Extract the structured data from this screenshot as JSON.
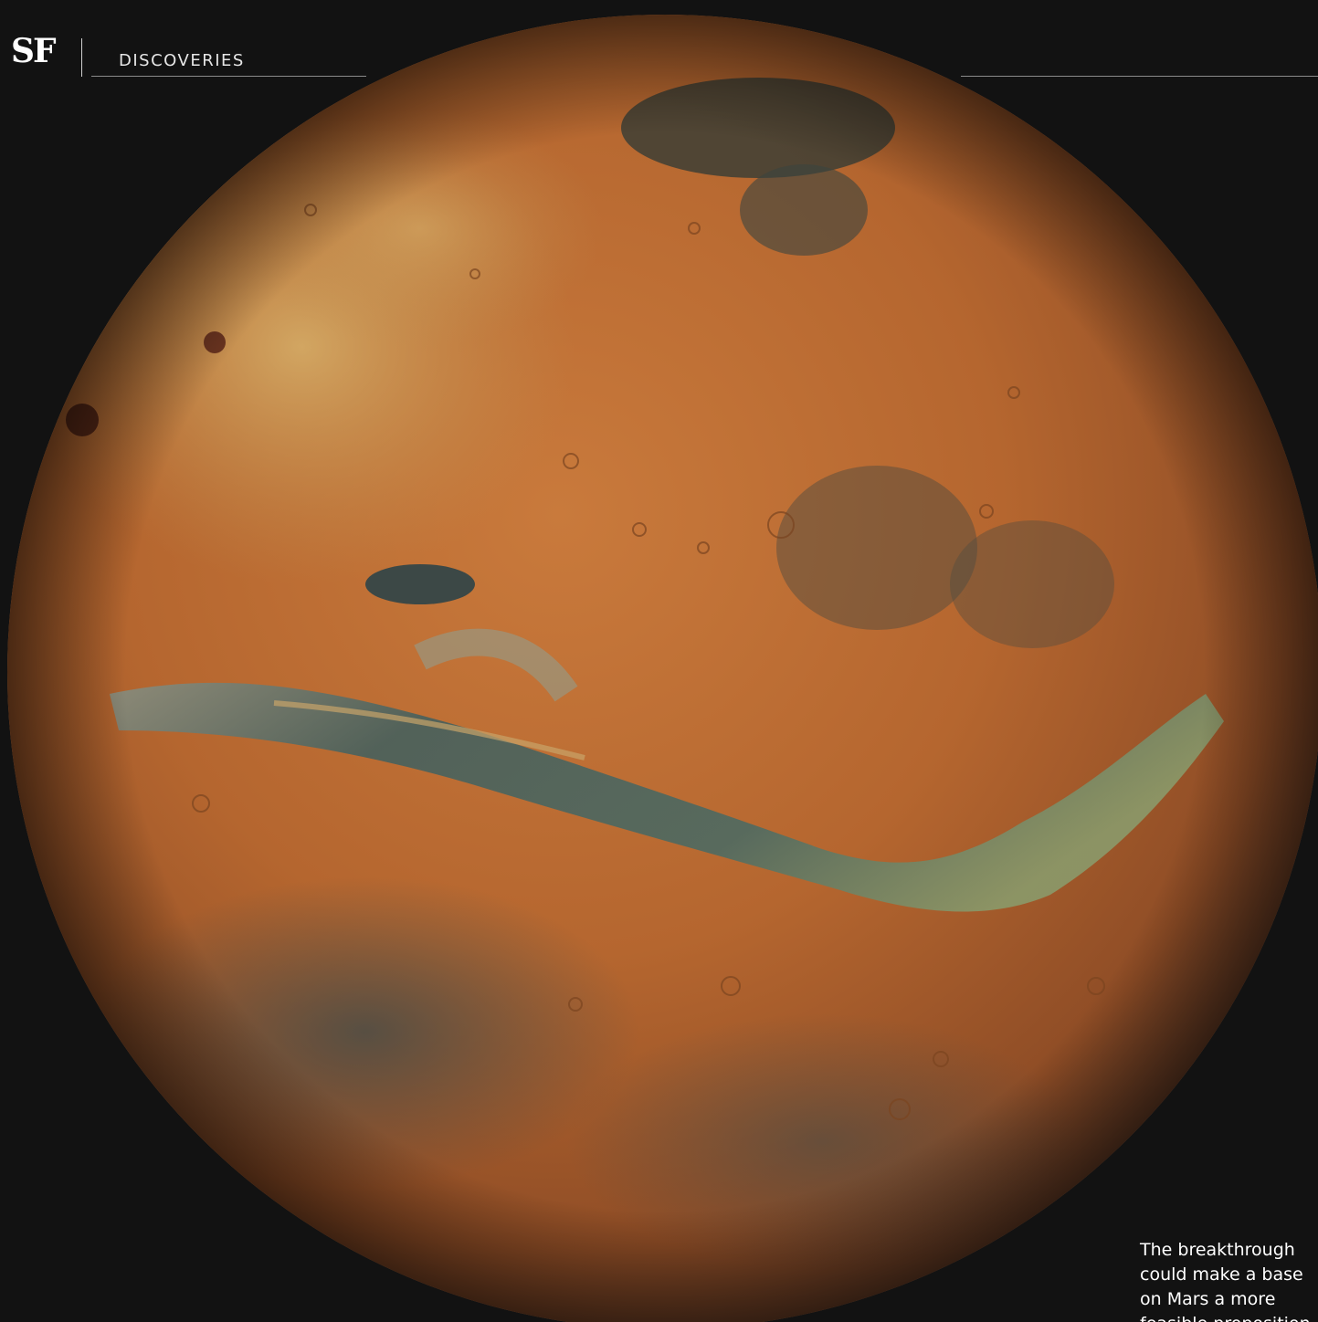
{
  "header": {
    "logo": "SF",
    "section": "DISCOVERIES"
  },
  "image": {
    "subject": "mars-globe-icon"
  },
  "caption": {
    "text": "The breakthrough\ncould make a base\non Mars a more\nfeasible proposition"
  },
  "colors": {
    "background": "#121212",
    "planet_base": "#b5672f",
    "canyon": "#4c6a66",
    "highlight": "#d9a45a"
  }
}
